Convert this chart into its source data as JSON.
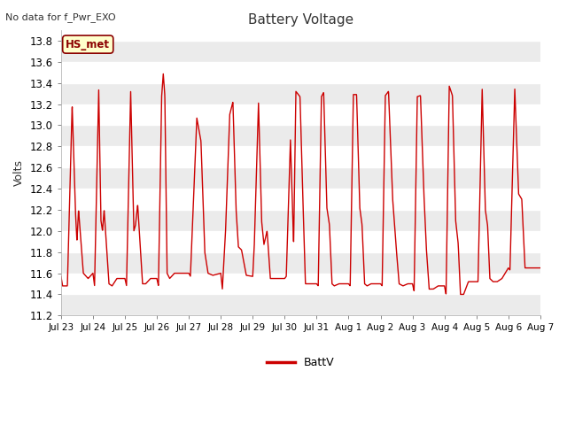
{
  "title": "Battery Voltage",
  "ylabel": "Volts",
  "top_left_text": "No data for f_Pwr_EXO",
  "legend_label": "BattV",
  "legend_color": "#cc0000",
  "line_color": "#cc0000",
  "fig_bg_color": "#ffffff",
  "plot_bg_color": "#ffffff",
  "grid_color": "#e0e0e0",
  "band_color": "#ebebeb",
  "ylim": [
    11.2,
    13.9
  ],
  "yticks": [
    11.2,
    11.4,
    11.6,
    11.8,
    12.0,
    12.2,
    12.4,
    12.6,
    12.8,
    13.0,
    13.2,
    13.4,
    13.6,
    13.8
  ],
  "hs_met_label": "HS_met",
  "x_tick_labels": [
    "Jul 23",
    "Jul 24",
    "Jul 25",
    "Jul 26",
    "Jul 27",
    "Jul 28",
    "Jul 29",
    "Jul 30",
    "Jul 31",
    "Aug 1",
    "Aug 2",
    "Aug 3",
    "Aug 4",
    "Aug 5",
    "Aug 6",
    "Aug 7"
  ],
  "n_days": 15
}
